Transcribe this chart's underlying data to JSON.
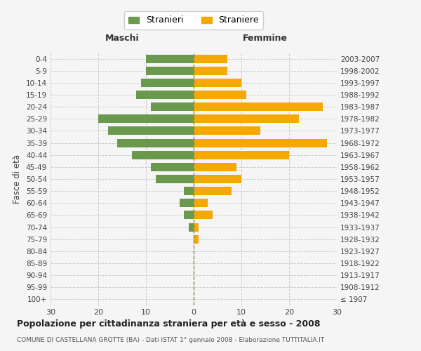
{
  "age_groups": [
    "100+",
    "95-99",
    "90-94",
    "85-89",
    "80-84",
    "75-79",
    "70-74",
    "65-69",
    "60-64",
    "55-59",
    "50-54",
    "45-49",
    "40-44",
    "35-39",
    "30-34",
    "25-29",
    "20-24",
    "15-19",
    "10-14",
    "5-9",
    "0-4"
  ],
  "birth_years": [
    "≤ 1907",
    "1908-1912",
    "1913-1917",
    "1918-1922",
    "1923-1927",
    "1928-1932",
    "1933-1937",
    "1938-1942",
    "1943-1947",
    "1948-1952",
    "1953-1957",
    "1958-1962",
    "1963-1967",
    "1968-1972",
    "1973-1977",
    "1978-1982",
    "1983-1987",
    "1988-1992",
    "1993-1997",
    "1998-2002",
    "2003-2007"
  ],
  "males": [
    0,
    0,
    0,
    0,
    0,
    0,
    1,
    2,
    3,
    2,
    8,
    9,
    13,
    16,
    18,
    20,
    9,
    12,
    11,
    10,
    10
  ],
  "females": [
    0,
    0,
    0,
    0,
    0,
    1,
    1,
    4,
    3,
    8,
    10,
    9,
    20,
    28,
    14,
    22,
    27,
    11,
    10,
    7,
    7
  ],
  "male_color": "#6a994e",
  "female_color": "#f4a800",
  "background_color": "#f5f5f5",
  "grid_color": "#cccccc",
  "bar_height": 0.7,
  "xlim": 30,
  "title": "Popolazione per cittadinanza straniera per età e sesso - 2008",
  "subtitle": "COMUNE DI CASTELLANA GROTTE (BA) - Dati ISTAT 1° gennaio 2008 - Elaborazione TUTTITALIA.IT",
  "ylabel_left": "Fasce di età",
  "xlabel_left": "Maschi",
  "xlabel_top_right": "Femmine",
  "legend_stranieri": "Stranieri",
  "legend_straniere": "Straniere"
}
